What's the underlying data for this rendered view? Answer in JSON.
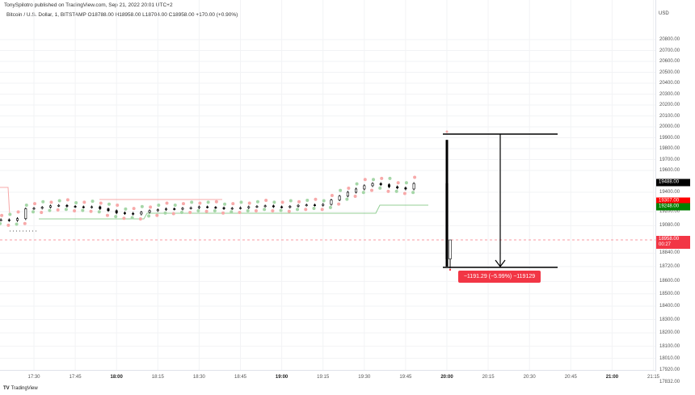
{
  "header": {
    "publisher": "TonySpilotro published on TradingView.com, Sep 21, 2022 20:01 UTC+2",
    "legend": "Bitcoin / U.S. Dollar, 1, BITSTAMP  O18788.00  H18958.00  L18704.00  C18958.00  +170.00 (+0.90%)"
  },
  "price_axis": {
    "currency": "USD",
    "labels": [
      "20800.00",
      "20700.00",
      "20600.00",
      "20500.00",
      "20400.00",
      "20300.00",
      "20200.00",
      "20100.00",
      "20000.00",
      "19900.00",
      "19800.00",
      "19700.00",
      "19600.00",
      "19400.00",
      "19200.00",
      "19080.00",
      "18840.00",
      "18720.00",
      "18600.00",
      "18500.00",
      "18400.00",
      "18300.00",
      "18200.00",
      "18100.00",
      "18010.00",
      "17920.00",
      "17832.00"
    ],
    "badges": [
      {
        "text": "19488.00",
        "color": "#000000",
        "price": 19488
      },
      {
        "text": "19307.00",
        "color": "#ff0000",
        "price": 19307
      },
      {
        "text": "19248.00",
        "color": "#008000",
        "price": 19248
      },
      {
        "text": "18958.00",
        "sub": "00:27",
        "color": "#f23645",
        "price": 18958
      }
    ]
  },
  "time_axis": {
    "labels": [
      "17:30",
      "17:45",
      "18:00",
      "18:15",
      "18:30",
      "18:45",
      "19:00",
      "19:15",
      "19:30",
      "19:45",
      "20:00",
      "20:15",
      "20:30",
      "20:45",
      "21:00",
      "21:15"
    ],
    "bold": [
      "18:00",
      "19:00",
      "20:00",
      "21:00"
    ]
  },
  "series": {
    "start": "17:18",
    "interval_min": 3,
    "closes": [
      19130,
      19125,
      19140,
      19230,
      19235,
      19245,
      19260,
      19265,
      19255,
      19250,
      19245,
      19250,
      19230,
      19210,
      19190,
      19185,
      19180,
      19195,
      19210,
      19220,
      19230,
      19225,
      19235,
      19240,
      19250,
      19245,
      19240,
      19230,
      19235,
      19240,
      19250,
      19255,
      19260,
      19250,
      19245,
      19255,
      19265,
      19270,
      19265,
      19275,
      19320,
      19360,
      19400,
      19430,
      19460,
      19480,
      19470,
      19450,
      19440,
      19430,
      19480
    ],
    "spike": {
      "open": 19480,
      "high": 19880,
      "low": 18720,
      "close": 18788
    },
    "last": {
      "open": 18788,
      "high": 18958,
      "low": 18704,
      "close": 18958
    }
  },
  "measure": {
    "label": "−1191.29 (−5.99%) −119129",
    "high": 19900,
    "low": 18715
  },
  "colors": {
    "up_dot": "#a5d6a7",
    "down_dot": "#f7a9a9",
    "red": "#f23645",
    "green": "#4caf50"
  },
  "branding": {
    "logo": "TradingView"
  }
}
